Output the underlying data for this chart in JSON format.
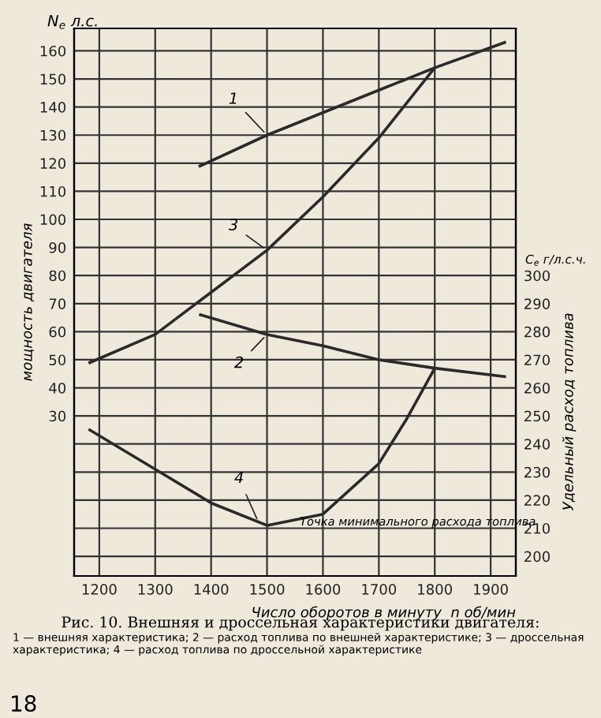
{
  "chart_data": {
    "type": "line",
    "title": "Рис. 10. Внешняя и дроссельная характеристики двигателя:",
    "subtitle": "1 — внешняя характеристика; 2 — расход топлива по внешней характеристике; 3 — дроссельная характеристика; 4 — расход топлива по дроссельной характеристике",
    "xlabel": "Число оборотов в минуту  n об/мин",
    "ylabel": "мощность двигателя",
    "y2label": "Удельный расход топлива",
    "xlim": [
      1155,
      1945
    ],
    "xticks": [
      1200,
      1300,
      1400,
      1500,
      1600,
      1700,
      1800,
      1900
    ],
    "ylim": [
      -27,
      168
    ],
    "yticks": [
      {
        "value": -20,
        "label": null
      },
      {
        "value": -10,
        "label": null
      },
      {
        "value": 0,
        "label": null
      },
      {
        "value": 10,
        "label": null
      },
      {
        "value": 20,
        "label": null
      },
      30,
      40,
      50,
      60,
      70,
      80,
      90,
      100,
      110,
      120,
      130,
      140,
      150,
      160
    ],
    "y2lim": [
      193,
      388
    ],
    "y2ticks": [
      200,
      210,
      220,
      230,
      240,
      250,
      260,
      270,
      280,
      290,
      300
    ],
    "grid": true,
    "line_style": "solid",
    "marker": "none",
    "series": [
      {
        "name": "1",
        "color": "#2a2a2a",
        "x": [
          1380,
          1500,
          1600,
          1700,
          1800,
          1925
        ],
        "values": [
          119,
          130,
          138,
          146,
          154,
          163
        ]
      },
      {
        "name": "2",
        "color": "#2a2a2a",
        "axis": "y2",
        "x": [
          1381,
          1500,
          1600,
          1700,
          1800,
          1925
        ],
        "values": [
          286,
          279,
          275,
          270,
          267,
          264
        ]
      },
      {
        "name": "3",
        "color": "#2a2a2a",
        "x": [
          1183,
          1300,
          1400,
          1500,
          1600,
          1700,
          1800
        ],
        "values": [
          49,
          59,
          74,
          89,
          108,
          129,
          154
        ]
      },
      {
        "name": "4",
        "color": "#2a2a2a",
        "axis": "y2",
        "x": [
          1183,
          1300,
          1400,
          1500,
          1600,
          1700,
          1750,
          1800
        ],
        "values": [
          245,
          231,
          219,
          211,
          215,
          233,
          249,
          267
        ]
      }
    ],
    "annotations": [
      "Точка минимального расхода топлива",
      "N$_{e}$ л.с.",
      "C$_{e}$ г/л.с.ч.",
      "18"
    ]
  }
}
